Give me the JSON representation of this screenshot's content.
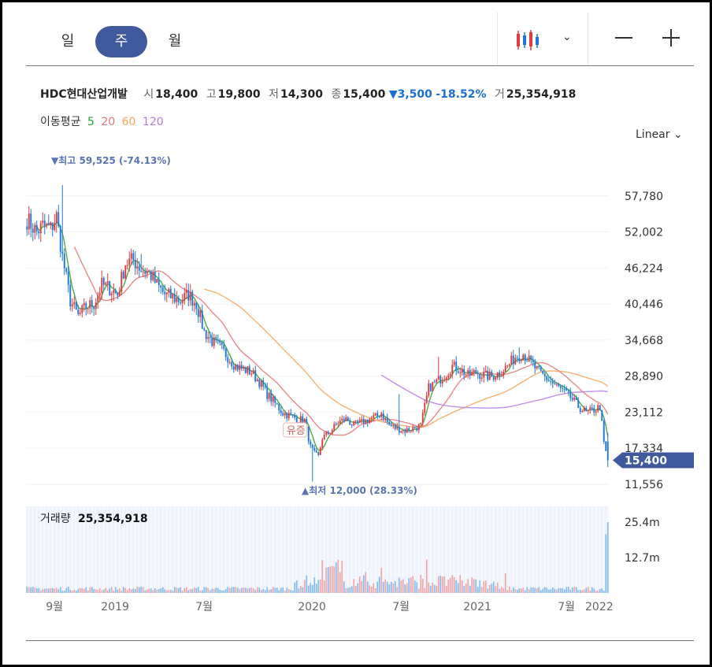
{
  "tabs": [
    {
      "label": "일"
    },
    {
      "label": "주",
      "active": true
    },
    {
      "label": "월"
    }
  ],
  "toolbar": {
    "chart_type_icon": "candlestick-icon",
    "dropdown_icon": "chevron-down-icon",
    "zoom_out_icon": "minus-icon",
    "zoom_in_icon": "plus-icon"
  },
  "quote": {
    "name": "HDC현대산업개발",
    "open_label": "시",
    "open": "18,400",
    "high_label": "고",
    "high": "19,800",
    "low_label": "저",
    "low": "14,300",
    "close_label": "종",
    "close": "15,400",
    "change": "▼3,500",
    "change_pct": "-18.52%",
    "volume_label": "거",
    "volume": "25,354,918"
  },
  "ma_legend": {
    "label": "이동평균",
    "p5": "5",
    "p20": "20",
    "p60": "60",
    "p120": "120"
  },
  "scale_label": "Linear ⌄",
  "colors": {
    "up": "#e03a3e",
    "down": "#1f78d1",
    "ma5": "#2ca02c",
    "ma20": "#e57373",
    "ma60": "#f5a35c",
    "ma120": "#b57be6",
    "accent": "#3f5a9c"
  },
  "chart_data": {
    "type": "candlestick",
    "y_ticks": [
      "57,780",
      "52,002",
      "46,224",
      "40,446",
      "34,668",
      "28,890",
      "23,112",
      "17,334",
      "11,556"
    ],
    "ylim": [
      11556,
      63558
    ],
    "x_ticks": [
      "9월",
      "2019",
      "7월",
      "2020",
      "7월",
      "2021",
      "7월",
      "2022"
    ],
    "price_tag": "15,400",
    "max_label": "▼최고 59,525 (-74.13%)",
    "min_label": "▲최저 12,000 (28.33%)",
    "event_label": "유증",
    "volume_label": "거래량",
    "volume_value": "25,354,918",
    "volume_ticks": [
      "25.4m",
      "12.7m"
    ],
    "volume_ylim": [
      0,
      31000000
    ],
    "anchors": [
      [
        0,
        54000
      ],
      [
        5,
        52000
      ],
      [
        8,
        53000
      ],
      [
        12,
        52500
      ],
      [
        15,
        54500
      ],
      [
        18,
        48000
      ],
      [
        22,
        41000
      ],
      [
        26,
        38500
      ],
      [
        30,
        40000
      ],
      [
        34,
        40500
      ],
      [
        38,
        43500
      ],
      [
        42,
        43000
      ],
      [
        46,
        42000
      ],
      [
        50,
        47000
      ],
      [
        54,
        47500
      ],
      [
        58,
        46000
      ],
      [
        62,
        45500
      ],
      [
        66,
        43500
      ],
      [
        70,
        42000
      ],
      [
        74,
        41500
      ],
      [
        78,
        41000
      ],
      [
        82,
        42000
      ],
      [
        86,
        40500
      ],
      [
        90,
        36000
      ],
      [
        94,
        34500
      ],
      [
        98,
        33500
      ],
      [
        102,
        32000
      ],
      [
        106,
        30500
      ],
      [
        110,
        30000
      ],
      [
        114,
        29500
      ],
      [
        118,
        28000
      ],
      [
        122,
        26000
      ],
      [
        126,
        24500
      ],
      [
        130,
        23000
      ],
      [
        134,
        22500
      ],
      [
        138,
        22000
      ],
      [
        141,
        21800
      ],
      [
        144,
        17500
      ],
      [
        146,
        16500
      ],
      [
        148,
        16000
      ],
      [
        150,
        19000
      ],
      [
        154,
        20000
      ],
      [
        158,
        21500
      ],
      [
        162,
        22000
      ],
      [
        166,
        21000
      ],
      [
        170,
        21500
      ],
      [
        174,
        22000
      ],
      [
        178,
        22500
      ],
      [
        180,
        23000
      ],
      [
        184,
        21000
      ],
      [
        188,
        20500
      ],
      [
        192,
        20200
      ],
      [
        196,
        20500
      ],
      [
        200,
        21000
      ],
      [
        204,
        27000
      ],
      [
        208,
        28000
      ],
      [
        212,
        29000
      ],
      [
        216,
        30500
      ],
      [
        220,
        30000
      ],
      [
        224,
        29000
      ],
      [
        228,
        29500
      ],
      [
        232,
        29000
      ],
      [
        236,
        28800
      ],
      [
        240,
        29500
      ],
      [
        244,
        30500
      ],
      [
        248,
        32000
      ],
      [
        252,
        32500
      ],
      [
        256,
        31000
      ],
      [
        260,
        29500
      ],
      [
        264,
        28500
      ],
      [
        268,
        27500
      ],
      [
        272,
        26500
      ],
      [
        276,
        25500
      ],
      [
        280,
        24000
      ],
      [
        284,
        23000
      ],
      [
        288,
        23500
      ],
      [
        291,
        24000
      ],
      [
        293,
        18400
      ],
      [
        295,
        15400
      ]
    ],
    "spikes": [
      [
        18,
        59525
      ],
      [
        145,
        12000
      ],
      [
        58,
        48500
      ],
      [
        250,
        33500
      ],
      [
        209,
        32000
      ],
      [
        189,
        26000
      ]
    ],
    "event_x": 135,
    "n": 296
  }
}
